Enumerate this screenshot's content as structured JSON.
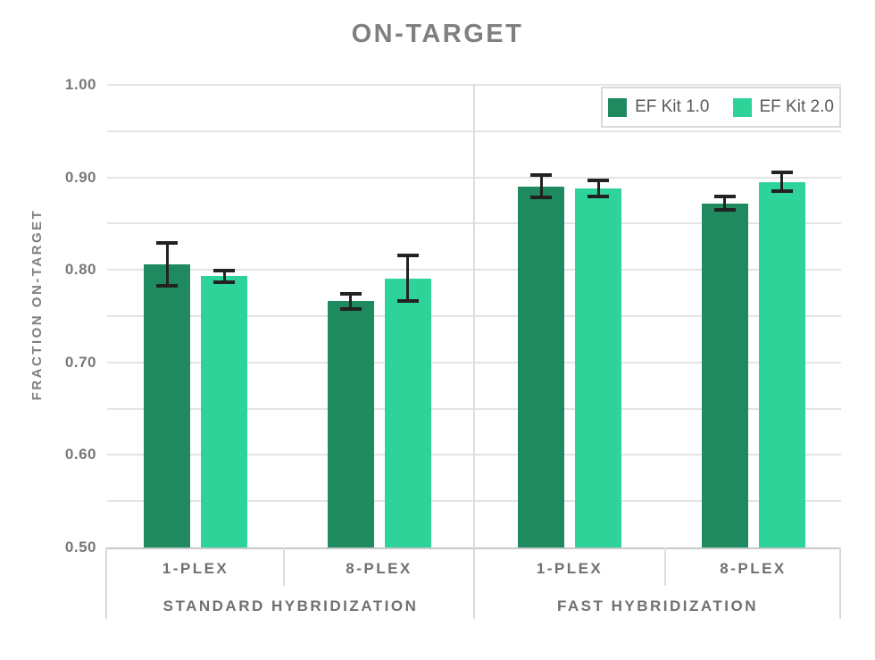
{
  "chart_data": {
    "type": "bar",
    "title": "ON-TARGET",
    "ylabel": "FRACTION ON-TARGET",
    "ylim": [
      0.5,
      1.0
    ],
    "yticks": [
      1.0,
      0.9,
      0.8,
      0.7,
      0.6,
      0.5
    ],
    "grid_step": 0.05,
    "grid": true,
    "legend_position": "top-right",
    "groups": [
      "STANDARD HYBRIDIZATION",
      "FAST HYBRIDIZATION"
    ],
    "categories": [
      [
        "1-PLEX",
        "8-PLEX"
      ],
      [
        "1-PLEX",
        "8-PLEX"
      ]
    ],
    "series": [
      {
        "name": "EF Kit 1.0",
        "color": "#1f8a60",
        "values": [
          [
            0.806,
            0.766
          ],
          [
            0.89,
            0.872
          ]
        ],
        "errors": [
          [
            0.024,
            0.009
          ],
          [
            0.013,
            0.008
          ]
        ]
      },
      {
        "name": "EF Kit 2.0",
        "color": "#2ed39a",
        "values": [
          [
            0.793,
            0.791
          ],
          [
            0.888,
            0.895
          ]
        ],
        "errors": [
          [
            0.007,
            0.026
          ],
          [
            0.01,
            0.011
          ]
        ]
      }
    ]
  },
  "colors": {
    "series_1": "#1f8a60",
    "series_2": "#2ed39a",
    "gridline": "#e4e4e5",
    "axis_line": "#c6c8c9",
    "label_gray": "#6e7073",
    "title_gray": "#7d7f82",
    "error_bar": "#222222"
  }
}
